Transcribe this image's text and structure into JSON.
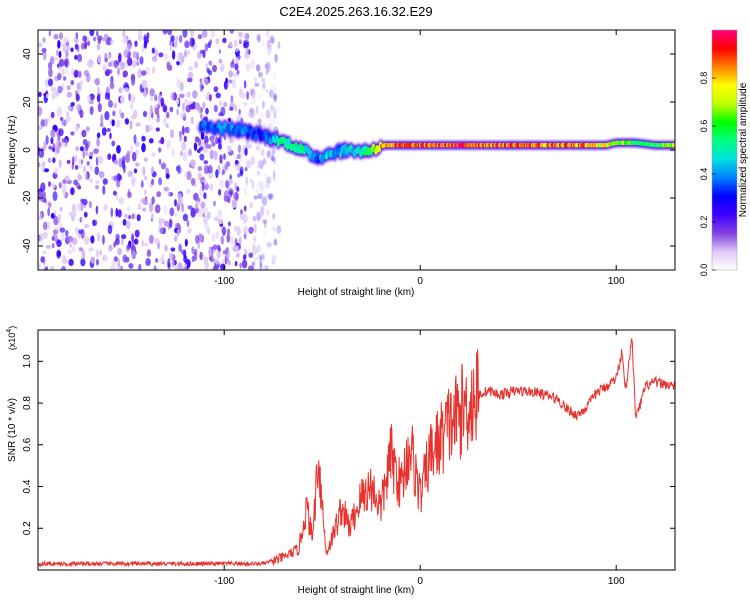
{
  "title": "C2E4.2025.263.16.32.E29",
  "chart_data": [
    {
      "type": "heatmap",
      "title": "C2E4.2025.263.16.32.E29",
      "xlabel": "Height of straight line (km)",
      "ylabel": "Frequency (Hz)",
      "xlim": [
        -195,
        130
      ],
      "ylim": [
        -50,
        50
      ],
      "xticks": [
        -100,
        0,
        100
      ],
      "xtick_labels": [
        "-100",
        "0",
        "100"
      ],
      "yticks": [
        -40,
        -20,
        0,
        20,
        40
      ],
      "ytick_labels": [
        "-40",
        "-20",
        "0",
        "20",
        "40"
      ],
      "colorbar": {
        "label": "Normalized spectral amplitude",
        "range": [
          0,
          1
        ],
        "ticks": [
          0.0,
          0.2,
          0.4,
          0.6,
          0.8
        ],
        "tick_labels": [
          "0.0",
          "0.2",
          "0.4",
          "0.6",
          "0.8"
        ],
        "colors": [
          "#ffffff",
          "#e0c8f8",
          "#8040e0",
          "#4000ff",
          "#0000ff",
          "#0080ff",
          "#00e0e0",
          "#00ff80",
          "#00ff00",
          "#c0ff00",
          "#ffff00",
          "#ff8000",
          "#ff0000",
          "#ff0080"
        ]
      },
      "ridge": {
        "x": [
          -112,
          -100,
          -90,
          -80,
          -72,
          -65,
          -58,
          -52,
          -48,
          -42,
          -36,
          -30,
          -25,
          -22,
          -18,
          -10,
          0,
          20,
          40,
          60,
          80,
          95,
          100,
          110,
          120,
          130
        ],
        "freq": [
          10,
          9,
          8,
          6,
          4,
          2,
          -1,
          -3,
          -2,
          -0.5,
          0,
          -0.5,
          0,
          1,
          2,
          2,
          2,
          2,
          2,
          2,
          2,
          2,
          3,
          3,
          2,
          2
        ],
        "amplitude": [
          0.35,
          0.4,
          0.38,
          0.3,
          0.5,
          0.55,
          0.5,
          0.35,
          0.45,
          0.4,
          0.45,
          0.5,
          0.6,
          0.75,
          0.85,
          0.85,
          0.85,
          0.9,
          0.88,
          0.85,
          0.82,
          0.75,
          0.7,
          0.55,
          0.6,
          0.7
        ]
      },
      "noise_region_x": [
        -195,
        -78
      ]
    },
    {
      "type": "line",
      "xlabel": "Height of straight line (km)",
      "ylabel": "SNR (10 * v/v)",
      "y_scale_note": "(x10",
      "y_scale_exp": "4",
      "xlim": [
        -195,
        130
      ],
      "ylim": [
        0,
        1.15
      ],
      "xticks": [
        -100,
        0,
        100
      ],
      "xtick_labels": [
        "-100",
        "0",
        "100"
      ],
      "yticks": [
        0.2,
        0.4,
        0.6,
        0.8,
        1.0
      ],
      "ytick_labels": [
        "0.2",
        "0.4",
        "0.6",
        "0.8",
        "1.0"
      ],
      "series": [
        {
          "name": "SNR",
          "color": "#e8322e",
          "x": [
            -195,
            -150,
            -100,
            -80,
            -70,
            -62,
            -58,
            -55,
            -52,
            -48,
            -45,
            -40,
            -36,
            -30,
            -25,
            -20,
            -15,
            -10,
            -5,
            0,
            5,
            10,
            15,
            20,
            25,
            30,
            35,
            40,
            50,
            60,
            70,
            75,
            80,
            85,
            90,
            95,
            100,
            103,
            105,
            108,
            110,
            115,
            120,
            130
          ],
          "y": [
            0.03,
            0.03,
            0.03,
            0.03,
            0.06,
            0.1,
            0.3,
            0.15,
            0.55,
            0.08,
            0.15,
            0.3,
            0.2,
            0.35,
            0.4,
            0.3,
            0.55,
            0.4,
            0.6,
            0.35,
            0.55,
            0.62,
            0.7,
            0.75,
            0.8,
            0.84,
            0.86,
            0.84,
            0.86,
            0.85,
            0.82,
            0.77,
            0.74,
            0.78,
            0.85,
            0.88,
            0.92,
            1.05,
            0.85,
            1.12,
            0.72,
            0.88,
            0.9,
            0.88
          ]
        }
      ]
    }
  ]
}
